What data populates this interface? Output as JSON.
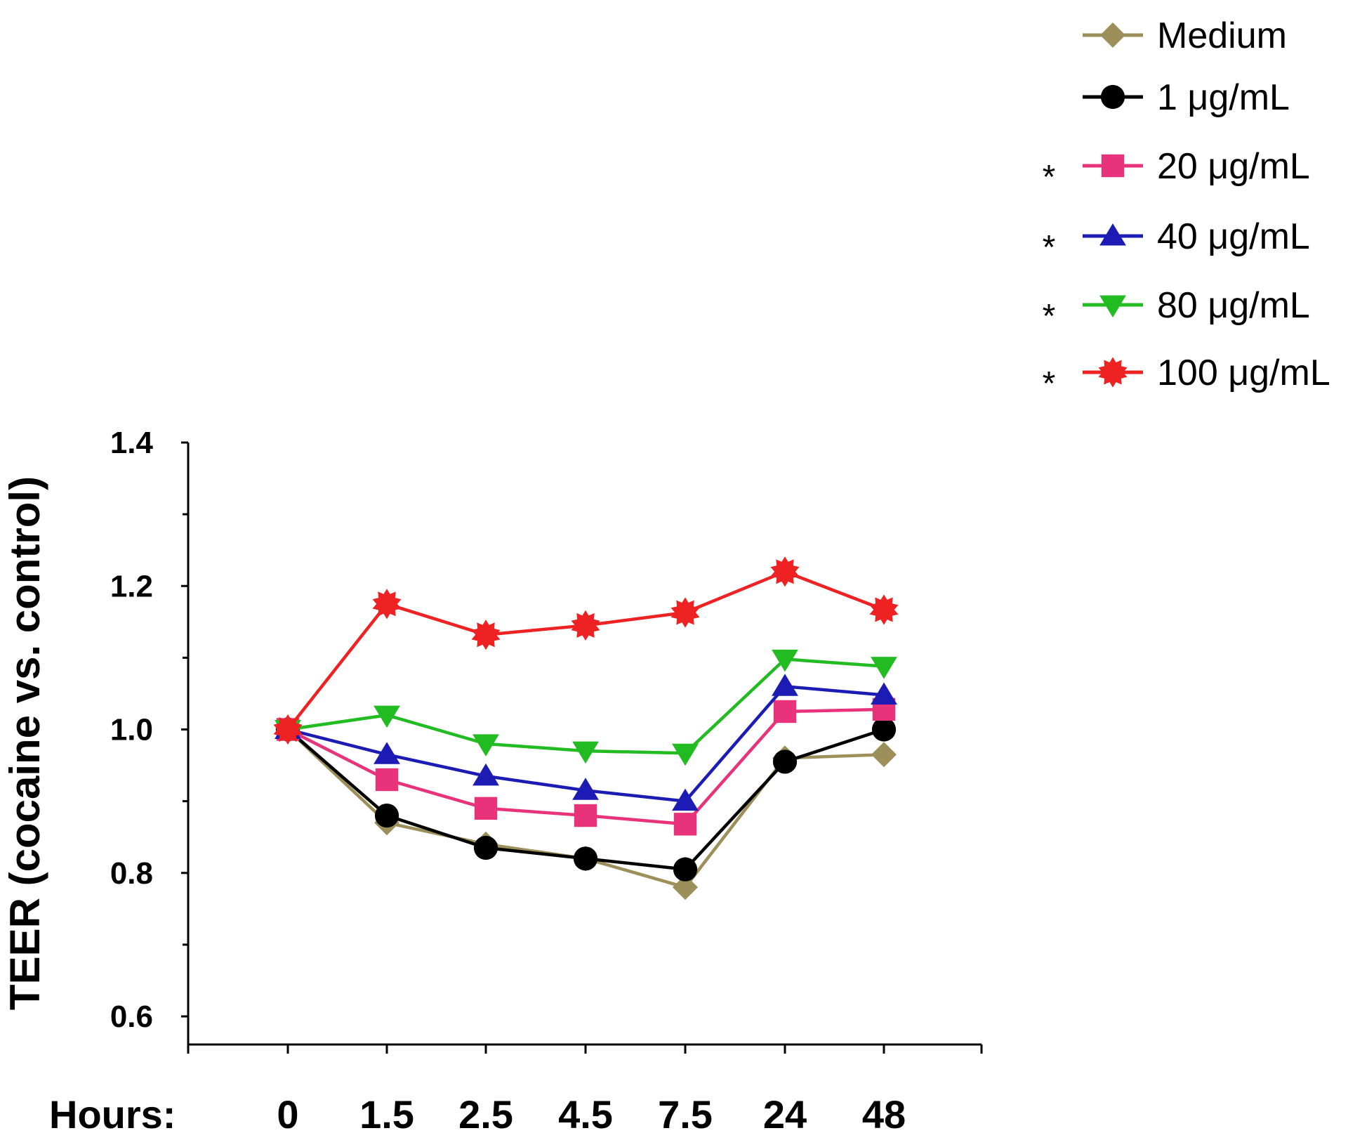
{
  "chart_data": {
    "type": "line",
    "ylabel": "TEER (cocaine vs. control)",
    "xlabel": "Hours:",
    "categories": [
      "0",
      "1.5",
      "2.5",
      "4.5",
      "7.5",
      "24",
      "48"
    ],
    "yticks": [
      "0.6",
      "0.8",
      "1.0",
      "1.2",
      "1.4"
    ],
    "ylim": [
      0.6,
      1.4
    ],
    "grid": false,
    "legend_position": "top-right",
    "series": [
      {
        "name": "Medium",
        "marker": "diamond",
        "color": "#9c8f5a",
        "significant": false,
        "values": [
          1.0,
          0.87,
          0.84,
          0.82,
          0.78,
          0.96,
          0.965
        ]
      },
      {
        "name": "1 μg/mL",
        "marker": "circle",
        "color": "#000000",
        "significant": false,
        "values": [
          1.0,
          0.88,
          0.835,
          0.82,
          0.805,
          0.955,
          1.0
        ]
      },
      {
        "name": "20 μg/mL",
        "marker": "square",
        "color": "#e8337a",
        "significant": true,
        "values": [
          1.0,
          0.93,
          0.89,
          0.88,
          0.868,
          1.025,
          1.028
        ]
      },
      {
        "name": "40 μg/mL",
        "marker": "triangle-up",
        "color": "#1c1cb4",
        "significant": true,
        "values": [
          1.0,
          0.965,
          0.935,
          0.915,
          0.9,
          1.06,
          1.048
        ]
      },
      {
        "name": "80 μg/mL",
        "marker": "triangle-down",
        "color": "#22bb22",
        "significant": true,
        "values": [
          1.0,
          1.02,
          0.98,
          0.97,
          0.967,
          1.098,
          1.088
        ]
      },
      {
        "name": "100 μg/mL",
        "marker": "star",
        "color": "#ee2222",
        "significant": true,
        "values": [
          1.0,
          1.175,
          1.132,
          1.145,
          1.163,
          1.22,
          1.167
        ]
      }
    ],
    "significance_marker": "*"
  }
}
